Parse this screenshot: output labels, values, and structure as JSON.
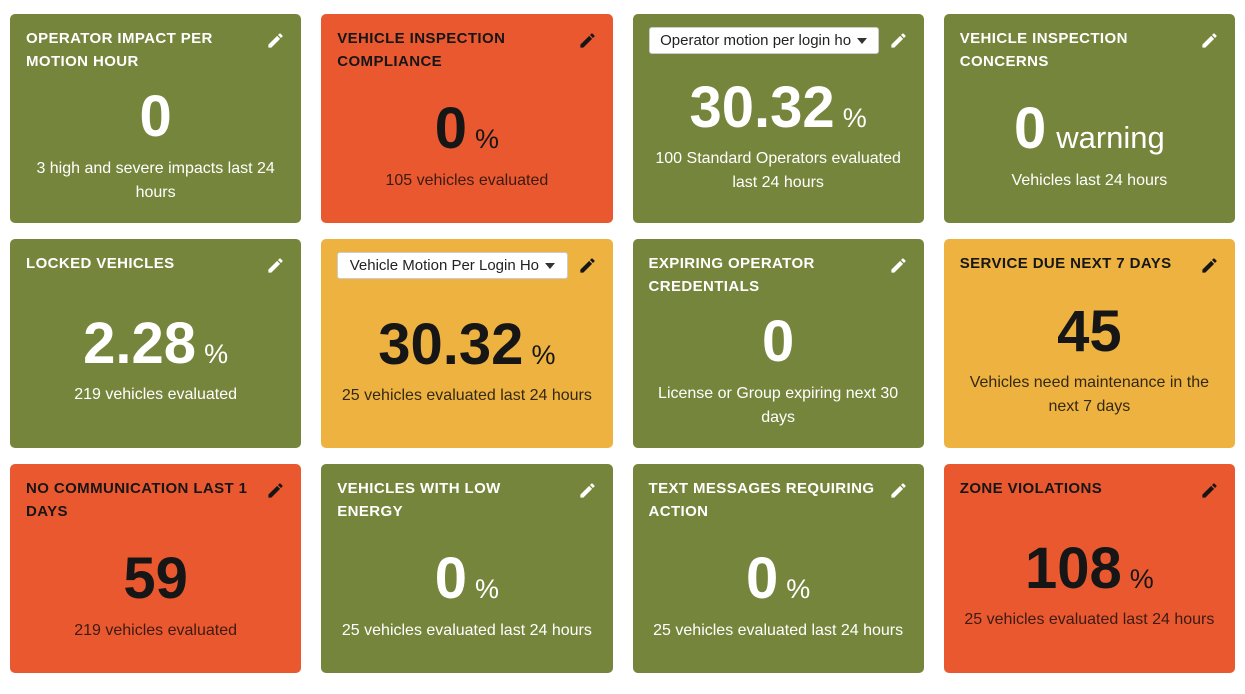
{
  "colors": {
    "green": "#76853c",
    "orange": "#ea5830",
    "yellow": "#edb23f",
    "dropdown_bg": "#ffffff",
    "text_on_green": "#ffffff",
    "text_on_warm": "#161616"
  },
  "tiles": [
    {
      "id": "operator-impact-per-motion-hour",
      "variant": "green",
      "title": "OPERATOR IMPACT PER MOTION HOUR",
      "value": "0",
      "unit": "",
      "subtitle": "3 high and severe impacts last 24 hours"
    },
    {
      "id": "vehicle-inspection-compliance",
      "variant": "orange",
      "title": "VEHICLE INSPECTION COMPLIANCE",
      "value": "0",
      "unit": "%",
      "subtitle": "105 vehicles evaluated"
    },
    {
      "id": "operator-motion-per-login-hour",
      "variant": "green",
      "dropdown_label": "Operator motion per login ho",
      "value": "30.32",
      "unit": "%",
      "subtitle": "100 Standard Operators evaluated last 24 hours"
    },
    {
      "id": "vehicle-inspection-concerns",
      "variant": "green",
      "title": "VEHICLE INSPECTION CONCERNS",
      "value": "0",
      "unit": "warning",
      "subtitle": "Vehicles last 24 hours"
    },
    {
      "id": "locked-vehicles",
      "variant": "green",
      "title": "LOCKED VEHICLES",
      "value": "2.28",
      "unit": "%",
      "subtitle": "219 vehicles evaluated"
    },
    {
      "id": "vehicle-motion-per-login-hour",
      "variant": "yellow",
      "dropdown_label": "Vehicle Motion Per Login Ho",
      "value": "30.32",
      "unit": "%",
      "subtitle": "25 vehicles evaluated last 24 hours"
    },
    {
      "id": "expiring-operator-credentials",
      "variant": "green",
      "title": "EXPIRING OPERATOR CREDENTIALS",
      "value": "0",
      "unit": "",
      "subtitle": "License or Group expiring next 30 days"
    },
    {
      "id": "service-due-next-7-days",
      "variant": "yellow",
      "title": "SERVICE DUE NEXT 7 DAYS",
      "value": "45",
      "unit": "",
      "subtitle": "Vehicles need maintenance in the next 7 days"
    },
    {
      "id": "no-communication-last-1-days",
      "variant": "orange",
      "title": "NO COMMUNICATION LAST 1 DAYS",
      "value": "59",
      "unit": "",
      "subtitle": "219 vehicles evaluated"
    },
    {
      "id": "vehicles-with-low-energy",
      "variant": "green",
      "title": "VEHICLES WITH LOW ENERGY",
      "value": "0",
      "unit": "%",
      "subtitle": "25 vehicles evaluated last 24 hours"
    },
    {
      "id": "text-messages-requiring-action",
      "variant": "green",
      "title": "TEXT MESSAGES REQUIRING ACTION",
      "value": "0",
      "unit": "%",
      "subtitle": "25 vehicles evaluated last 24 hours"
    },
    {
      "id": "zone-violations",
      "variant": "orange",
      "title": "ZONE VIOLATIONS",
      "value": "108",
      "unit": "%",
      "subtitle": "25 vehicles evaluated last 24 hours"
    }
  ]
}
